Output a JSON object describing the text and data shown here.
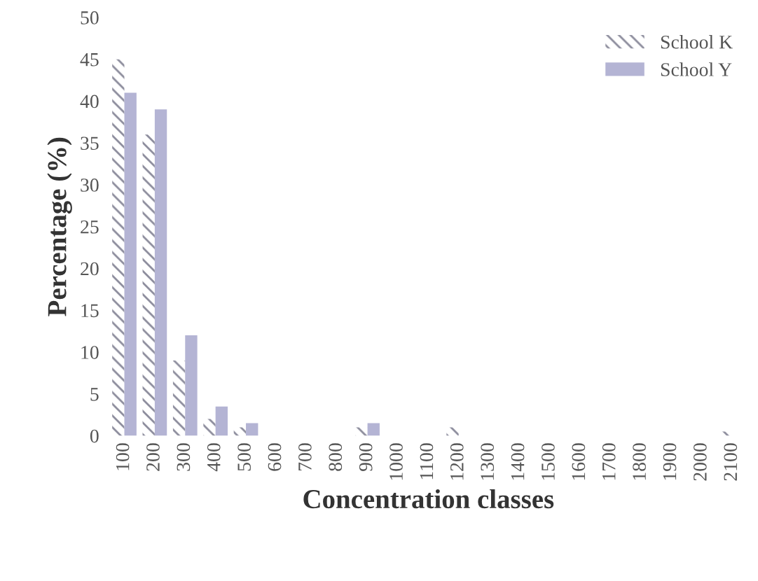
{
  "chart_data": {
    "type": "bar",
    "xlabel": "Concentration classes",
    "ylabel": "Percentage (%)",
    "categories": [
      "100",
      "200",
      "300",
      "400",
      "500",
      "600",
      "700",
      "800",
      "900",
      "1000",
      "1100",
      "1200",
      "1300",
      "1400",
      "1500",
      "1600",
      "1700",
      "1800",
      "1900",
      "2000",
      "2100"
    ],
    "series": [
      {
        "name": "School K",
        "color": "#8c8c9c",
        "values": [
          45,
          36,
          9,
          2,
          1,
          0,
          0,
          0,
          1,
          0,
          0,
          1,
          0,
          0,
          0,
          0,
          0,
          0,
          0,
          0,
          0.5
        ]
      },
      {
        "name": "School Y",
        "color": "#b4b4d4",
        "values": [
          41,
          39,
          12,
          3.5,
          1.5,
          0,
          0,
          0,
          1.5,
          0,
          0,
          0,
          0,
          0,
          0,
          0,
          0,
          0,
          0,
          0,
          0
        ]
      }
    ],
    "ylim": [
      0,
      50
    ],
    "yticks": [
      0,
      5,
      10,
      15,
      20,
      25,
      30,
      35,
      40,
      45,
      50
    ],
    "legend": "top right",
    "grid": false
  }
}
